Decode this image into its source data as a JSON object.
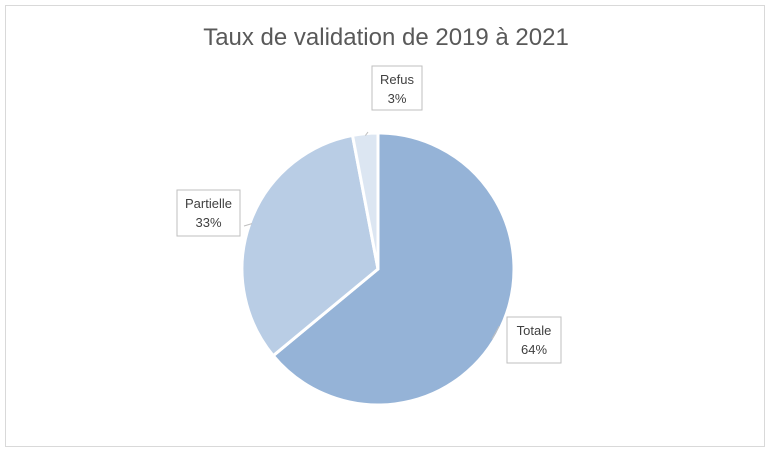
{
  "chart_data": {
    "type": "pie",
    "title": "Taux de validation de 2019 à 2021",
    "categories": [
      "Totale",
      "Partielle",
      "Refus"
    ],
    "values": [
      64,
      33,
      3
    ],
    "value_labels": [
      "64%",
      "33%",
      "3%"
    ],
    "colors": [
      "#95b3d7",
      "#b9cde5",
      "#dce6f2"
    ],
    "legend": "none",
    "data_labels": "callouts"
  }
}
